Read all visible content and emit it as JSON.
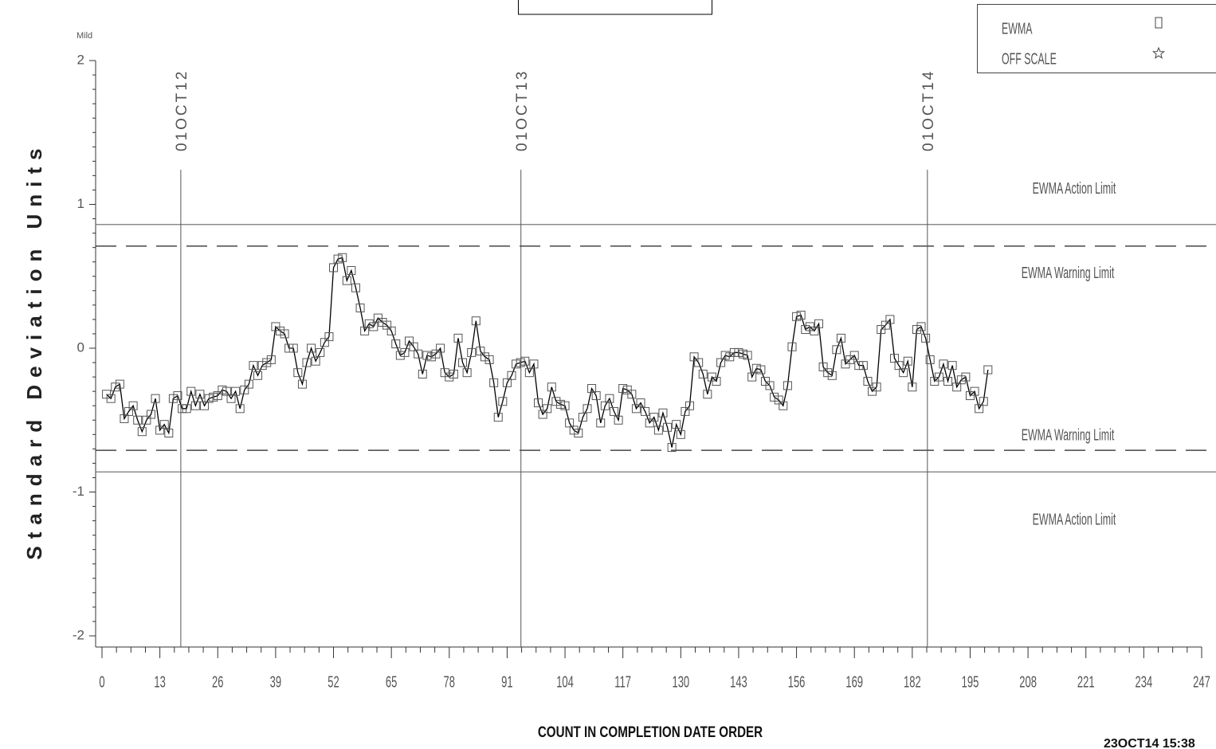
{
  "chart_data": {
    "type": "line",
    "y_top_label": "Mild",
    "ylabel": "Standard Deviation Units",
    "xlabel": "COUNT IN COMPLETION DATE ORDER",
    "timestamp": "23OCT14 15:38",
    "xlim": [
      0,
      247
    ],
    "xticks": [
      0,
      13,
      26,
      39,
      52,
      65,
      78,
      91,
      104,
      117,
      130,
      143,
      156,
      169,
      182,
      195,
      208,
      221,
      234,
      247
    ],
    "x_minor_per_major": 3,
    "ylim": [
      -2,
      2
    ],
    "yticks": [
      -2,
      -1,
      0,
      1,
      2
    ],
    "y_minor_per_major": 10,
    "legend": "upper right",
    "legend_extra": [
      {
        "name": "OFF SCALE",
        "marker": "star"
      }
    ],
    "limits": [
      {
        "label": "EWMA Action Limit",
        "value": 0.86,
        "dashed": false
      },
      {
        "label": "EWMA Warning Limit",
        "value": 0.71,
        "dashed": true
      },
      {
        "label": "EWMA Warning Limit",
        "value": -0.71,
        "dashed": true
      },
      {
        "label": "EWMA Action Limit",
        "value": -0.86,
        "dashed": false
      }
    ],
    "date_lines": [
      {
        "label": "01OCT12",
        "value": 17.7
      },
      {
        "label": "01OCT13",
        "value": 94.1
      },
      {
        "label": "01OCT14",
        "value": 185.4
      }
    ],
    "series": [
      {
        "name": "EWMA",
        "color": "#000000",
        "marker": "square",
        "x": [
          1,
          2,
          3,
          4,
          5,
          6,
          7,
          8,
          9,
          10,
          11,
          12,
          13,
          14,
          15,
          16,
          17,
          18,
          19,
          20,
          21,
          22,
          23,
          24,
          25,
          26,
          27,
          28,
          29,
          30,
          31,
          32,
          33,
          34,
          35,
          36,
          37,
          38,
          39,
          40,
          41,
          42,
          43,
          44,
          45,
          46,
          47,
          48,
          49,
          50,
          51,
          52,
          53,
          54,
          55,
          56,
          57,
          58,
          59,
          60,
          61,
          62,
          63,
          64,
          65,
          66,
          67,
          68,
          69,
          70,
          71,
          72,
          73,
          74,
          75,
          76,
          77,
          78,
          79,
          80,
          81,
          82,
          83,
          84,
          85,
          86,
          87,
          88,
          89,
          90,
          91,
          92,
          93,
          94,
          95,
          96,
          97,
          98,
          99,
          100,
          101,
          102,
          103,
          104,
          105,
          106,
          107,
          108,
          109,
          110,
          111,
          112,
          113,
          114,
          115,
          116,
          117,
          118,
          119,
          120,
          121,
          122,
          123,
          124,
          125,
          126,
          127,
          128,
          129,
          130,
          131,
          132,
          133,
          134,
          135,
          136,
          137,
          138,
          139,
          140,
          141,
          142,
          143,
          144,
          145,
          146,
          147,
          148,
          149,
          150,
          151,
          152,
          153,
          154,
          155,
          156,
          157,
          158,
          159,
          160,
          161,
          162,
          163,
          164,
          165,
          166,
          167,
          168,
          169,
          170,
          171,
          172,
          173,
          174,
          175,
          176,
          177,
          178,
          179,
          180,
          181,
          182,
          183,
          184,
          185,
          186,
          187,
          188,
          189,
          190,
          191,
          192,
          193,
          194,
          195,
          196,
          197,
          198,
          199
        ],
        "values": [
          -0.32,
          -0.35,
          -0.27,
          -0.25,
          -0.49,
          -0.44,
          -0.4,
          -0.5,
          -0.58,
          -0.5,
          -0.46,
          -0.35,
          -0.57,
          -0.53,
          -0.59,
          -0.35,
          -0.33,
          -0.42,
          -0.42,
          -0.3,
          -0.4,
          -0.32,
          -0.4,
          -0.35,
          -0.34,
          -0.33,
          -0.29,
          -0.3,
          -0.35,
          -0.3,
          -0.42,
          -0.29,
          -0.25,
          -0.12,
          -0.19,
          -0.12,
          -0.1,
          -0.08,
          0.15,
          0.12,
          0.1,
          0.0,
          0.0,
          -0.17,
          -0.25,
          -0.1,
          0.0,
          -0.09,
          -0.03,
          0.04,
          0.08,
          0.56,
          0.62,
          0.63,
          0.47,
          0.54,
          0.42,
          0.28,
          0.12,
          0.17,
          0.15,
          0.21,
          0.18,
          0.16,
          0.12,
          0.03,
          -0.05,
          -0.03,
          0.05,
          0.01,
          -0.04,
          -0.18,
          -0.05,
          -0.06,
          -0.04,
          0.0,
          -0.17,
          -0.2,
          -0.18,
          0.07,
          -0.1,
          -0.17,
          -0.03,
          0.19,
          -0.02,
          -0.06,
          -0.08,
          -0.24,
          -0.48,
          -0.37,
          -0.24,
          -0.19,
          -0.11,
          -0.1,
          -0.09,
          -0.17,
          -0.11,
          -0.38,
          -0.46,
          -0.42,
          -0.27,
          -0.37,
          -0.39,
          -0.4,
          -0.52,
          -0.57,
          -0.59,
          -0.48,
          -0.42,
          -0.28,
          -0.33,
          -0.52,
          -0.4,
          -0.35,
          -0.44,
          -0.5,
          -0.28,
          -0.29,
          -0.32,
          -0.42,
          -0.38,
          -0.44,
          -0.52,
          -0.48,
          -0.57,
          -0.45,
          -0.55,
          -0.69,
          -0.53,
          -0.6,
          -0.44,
          -0.4,
          -0.06,
          -0.1,
          -0.18,
          -0.32,
          -0.2,
          -0.23,
          -0.1,
          -0.05,
          -0.06,
          -0.03,
          -0.03,
          -0.04,
          -0.05,
          -0.2,
          -0.14,
          -0.15,
          -0.23,
          -0.26,
          -0.34,
          -0.36,
          -0.4,
          -0.26,
          0.01,
          0.22,
          0.23,
          0.13,
          0.15,
          0.12,
          0.17,
          -0.13,
          -0.17,
          -0.19,
          -0.01,
          0.07,
          -0.11,
          -0.08,
          -0.05,
          -0.12,
          -0.12,
          -0.23,
          -0.3,
          -0.27,
          0.13,
          0.16,
          0.2,
          -0.07,
          -0.12,
          -0.17,
          -0.09,
          -0.27,
          0.13,
          0.15,
          0.07,
          -0.08,
          -0.23,
          -0.2,
          -0.11,
          -0.23,
          -0.12,
          -0.27,
          -0.22,
          -0.2,
          -0.33,
          -0.3,
          -0.42,
          -0.37,
          -0.15
        ]
      }
    ]
  }
}
